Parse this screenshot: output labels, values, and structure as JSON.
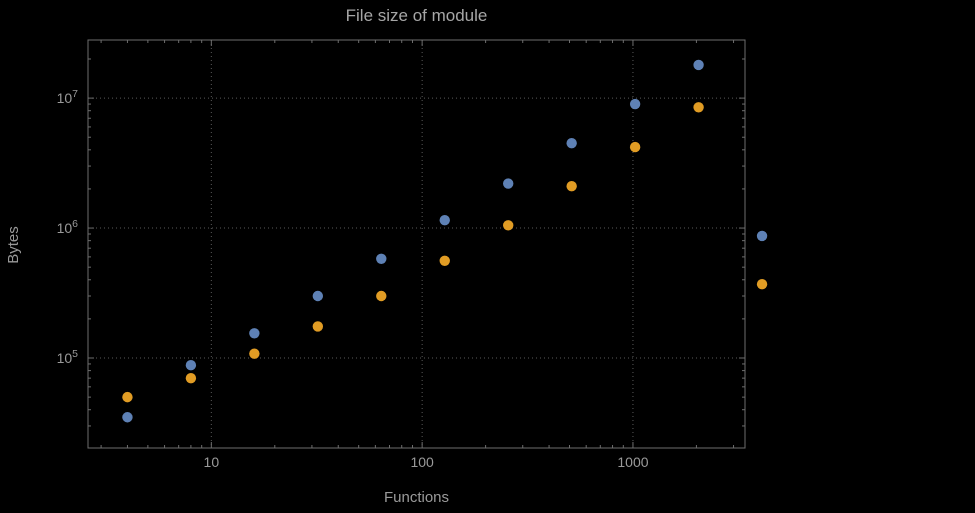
{
  "chart_data": {
    "type": "scatter",
    "title": "File size of module",
    "xlabel": "Functions",
    "ylabel": "Bytes",
    "x_scale": "log",
    "y_scale": "log",
    "xlim": [
      2.6,
      3400
    ],
    "ylim": [
      20300,
      28000000
    ],
    "x_ticks": [
      10,
      100,
      1000
    ],
    "x_tick_labels": [
      "10",
      "100",
      "1000"
    ],
    "y_ticks": [
      100000,
      1000000,
      10000000
    ],
    "y_tick_exponents": [
      "5",
      "6",
      "7"
    ],
    "grid": true,
    "legend": "none",
    "x": [
      4,
      8,
      16,
      32,
      64,
      128,
      256,
      512,
      1024,
      2048,
      4096
    ],
    "series": [
      {
        "name": "series-blue",
        "color": "#5E81B5",
        "values": [
          35000,
          88000,
          155000,
          300000,
          580000,
          1150000,
          2200000,
          4500000,
          9000000,
          18000000,
          870000
        ]
      },
      {
        "name": "series-orange",
        "color": "#E19C24",
        "values": [
          50000,
          70000,
          108000,
          175000,
          300000,
          560000,
          1050000,
          2100000,
          4200000,
          8500000,
          370000
        ]
      }
    ],
    "colors": {
      "background": "#000000",
      "frame": "#6e6e6e",
      "grid": "#5a5a5a",
      "tick_text": "#9a9a9a",
      "title_text": "#a6a6a6"
    }
  }
}
